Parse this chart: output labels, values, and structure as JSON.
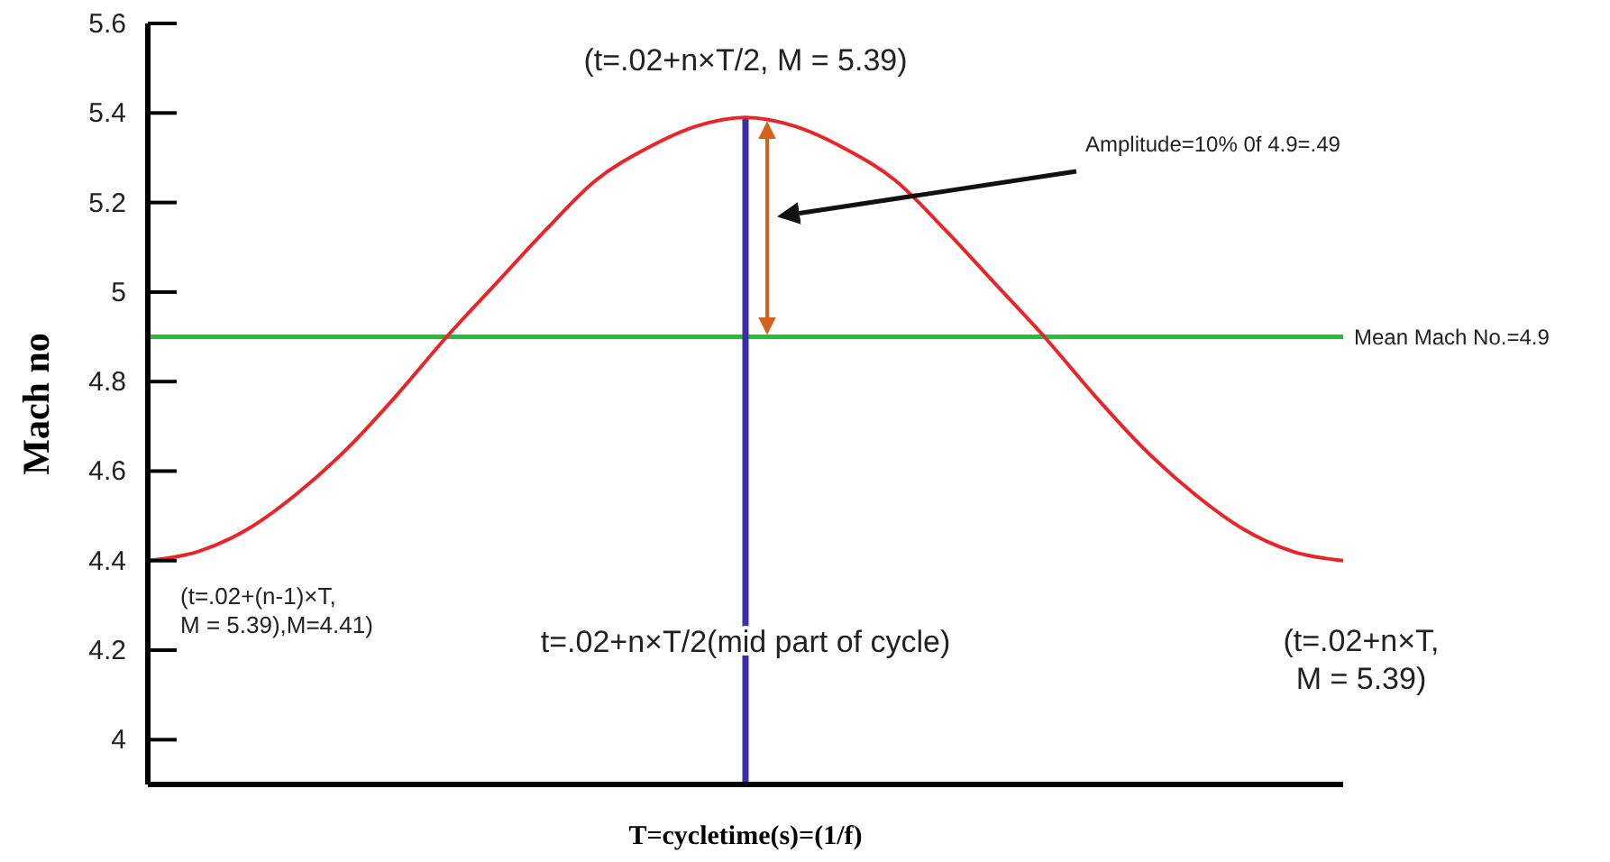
{
  "chart_data": {
    "type": "line",
    "xlabel": "T=cycletime(s)=(1/f)",
    "ylabel": "Mach no",
    "categories": [
      null,
      null,
      null,
      null,
      null,
      null,
      null,
      null,
      null,
      null,
      null,
      null,
      null,
      null,
      null,
      null,
      null,
      null,
      null,
      null,
      null,
      null,
      null,
      null,
      null
    ],
    "series": [
      {
        "color": "#e8262a",
        "values": [
          4.4,
          4.42,
          4.47,
          4.55,
          4.65,
          4.77,
          4.9,
          5.02,
          5.14,
          5.25,
          5.32,
          5.37,
          5.39,
          5.37,
          5.32,
          5.25,
          5.14,
          5.02,
          4.9,
          4.77,
          4.65,
          4.55,
          4.47,
          4.42,
          4.4
        ]
      }
    ],
    "ylim": [
      3.9,
      5.6
    ],
    "yticks": [
      4,
      4.2,
      4.4,
      4.6,
      4.8,
      5,
      5.2,
      5.4,
      5.6
    ],
    "tick_labels": "y",
    "grid": false,
    "marker": "none",
    "line_style": "solid",
    "ref_lines": [
      {
        "axis": "y",
        "value": 4.9,
        "label": "Mean Mach No.=4.9",
        "color": "#22c032"
      }
    ],
    "annotations": [
      "(t=.02+n×T/2, M = 5.39)",
      "(t=.02+(n-1)×T,\nM = 5.39),M=4.41)",
      "(t=.02+n×T,\nM = 5.39)",
      "Amplitude=10% 0f 4.9=.49",
      "t=.02+n×T/2(mid part of cycle)"
    ]
  }
}
